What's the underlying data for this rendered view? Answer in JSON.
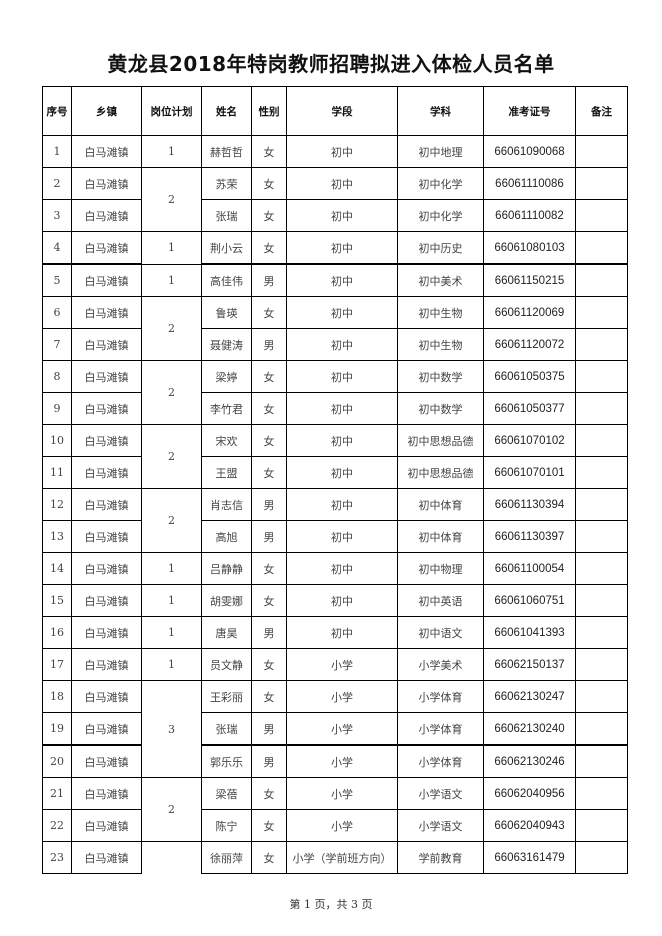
{
  "title": "黄龙县2018年特岗教师招聘拟进入体检人员名单",
  "headers": [
    "序号",
    "乡镇",
    "岗位计划",
    "姓名",
    "性别",
    "学段",
    "学科",
    "准考证号",
    "备注"
  ],
  "rows": [
    {
      "no": "1",
      "town": "白马滩镇",
      "plan": "1",
      "name": "赫哲哲",
      "gender": "女",
      "stage": "初中",
      "subject": "初中地理",
      "exam_id": "66061090068",
      "note": ""
    },
    {
      "no": "2",
      "town": "白马滩镇",
      "plan": "2",
      "name": "苏荣",
      "gender": "女",
      "stage": "初中",
      "subject": "初中化学",
      "exam_id": "66061110086",
      "note": ""
    },
    {
      "no": "3",
      "town": "白马滩镇",
      "plan": null,
      "name": "张瑞",
      "gender": "女",
      "stage": "初中",
      "subject": "初中化学",
      "exam_id": "66061110082",
      "note": ""
    },
    {
      "no": "4",
      "town": "白马滩镇",
      "plan": "1",
      "name": "荆小云",
      "gender": "女",
      "stage": "初中",
      "subject": "初中历史",
      "exam_id": "66061080103",
      "note": ""
    },
    {
      "no": "5",
      "town": "白马滩镇",
      "plan": "1",
      "name": "高佳伟",
      "gender": "男",
      "stage": "初中",
      "subject": "初中美术",
      "exam_id": "66061150215",
      "note": ""
    },
    {
      "no": "6",
      "town": "白马滩镇",
      "plan": "2",
      "name": "鲁瑛",
      "gender": "女",
      "stage": "初中",
      "subject": "初中生物",
      "exam_id": "66061120069",
      "note": ""
    },
    {
      "no": "7",
      "town": "白马滩镇",
      "plan": null,
      "name": "聂健涛",
      "gender": "男",
      "stage": "初中",
      "subject": "初中生物",
      "exam_id": "66061120072",
      "note": ""
    },
    {
      "no": "8",
      "town": "白马滩镇",
      "plan": "2",
      "name": "梁婷",
      "gender": "女",
      "stage": "初中",
      "subject": "初中数学",
      "exam_id": "66061050375",
      "note": ""
    },
    {
      "no": "9",
      "town": "白马滩镇",
      "plan": null,
      "name": "李竹君",
      "gender": "女",
      "stage": "初中",
      "subject": "初中数学",
      "exam_id": "66061050377",
      "note": ""
    },
    {
      "no": "10",
      "town": "白马滩镇",
      "plan": "2",
      "name": "宋欢",
      "gender": "女",
      "stage": "初中",
      "subject": "初中思想品德",
      "exam_id": "66061070102",
      "note": ""
    },
    {
      "no": "11",
      "town": "白马滩镇",
      "plan": null,
      "name": "王盟",
      "gender": "女",
      "stage": "初中",
      "subject": "初中思想品德",
      "exam_id": "66061070101",
      "note": ""
    },
    {
      "no": "12",
      "town": "白马滩镇",
      "plan": "2",
      "name": "肖志信",
      "gender": "男",
      "stage": "初中",
      "subject": "初中体育",
      "exam_id": "66061130394",
      "note": ""
    },
    {
      "no": "13",
      "town": "白马滩镇",
      "plan": null,
      "name": "高旭",
      "gender": "男",
      "stage": "初中",
      "subject": "初中体育",
      "exam_id": "66061130397",
      "note": ""
    },
    {
      "no": "14",
      "town": "白马滩镇",
      "plan": "1",
      "name": "吕静静",
      "gender": "女",
      "stage": "初中",
      "subject": "初中物理",
      "exam_id": "66061100054",
      "note": ""
    },
    {
      "no": "15",
      "town": "白马滩镇",
      "plan": "1",
      "name": "胡雯娜",
      "gender": "女",
      "stage": "初中",
      "subject": "初中英语",
      "exam_id": "66061060751",
      "note": ""
    },
    {
      "no": "16",
      "town": "白马滩镇",
      "plan": "1",
      "name": "唐昊",
      "gender": "男",
      "stage": "初中",
      "subject": "初中语文",
      "exam_id": "66061041393",
      "note": ""
    },
    {
      "no": "17",
      "town": "白马滩镇",
      "plan": "1",
      "name": "员文静",
      "gender": "女",
      "stage": "小学",
      "subject": "小学美术",
      "exam_id": "66062150137",
      "note": ""
    },
    {
      "no": "18",
      "town": "白马滩镇",
      "plan": "3",
      "name": "王彩丽",
      "gender": "女",
      "stage": "小学",
      "subject": "小学体育",
      "exam_id": "66062130247",
      "note": ""
    },
    {
      "no": "19",
      "town": "白马滩镇",
      "plan": null,
      "name": "张瑞",
      "gender": "男",
      "stage": "小学",
      "subject": "小学体育",
      "exam_id": "66062130240",
      "note": ""
    },
    {
      "no": "20",
      "town": "白马滩镇",
      "plan": null,
      "name": "郭乐乐",
      "gender": "男",
      "stage": "小学",
      "subject": "小学体育",
      "exam_id": "66062130246",
      "note": ""
    },
    {
      "no": "21",
      "town": "白马滩镇",
      "plan": "2",
      "name": "梁蓓",
      "gender": "女",
      "stage": "小学",
      "subject": "小学语文",
      "exam_id": "66062040956",
      "note": ""
    },
    {
      "no": "22",
      "town": "白马滩镇",
      "plan": null,
      "name": "陈宁",
      "gender": "女",
      "stage": "小学",
      "subject": "小学语文",
      "exam_id": "66062040943",
      "note": ""
    },
    {
      "no": "23",
      "town": "白马滩镇",
      "plan": "",
      "name": "徐丽萍",
      "gender": "女",
      "stage": "小学（学前班方向）",
      "subject": "学前教育",
      "exam_id": "66063161479",
      "note": ""
    }
  ],
  "footer": "第 1 页，共 3 页"
}
